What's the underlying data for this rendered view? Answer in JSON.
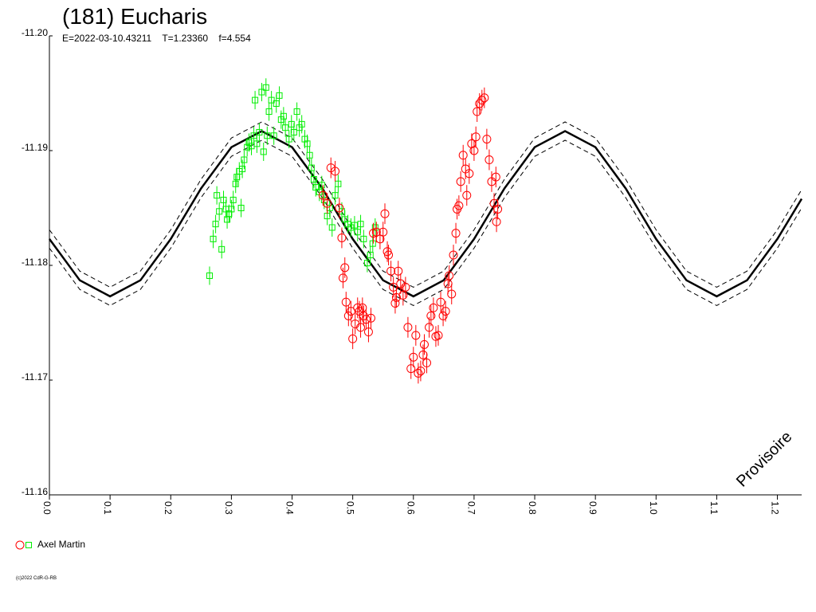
{
  "chart_data": {
    "type": "scatter",
    "title": "(181) Eucharis",
    "subtitle": "E=2022-03-10.43211    T=1.23360    f=4.554",
    "annotation": "Provisoire",
    "copyright": "(c)2022 CdR-G-RB",
    "xlim": [
      0,
      1.24
    ],
    "xticks": [
      {
        "value": 0,
        "label": "0.0"
      },
      0.1,
      0.2,
      0.3,
      0.4,
      0.5,
      0.6,
      0.7,
      0.8,
      0.9,
      {
        "value": 1,
        "label": "1.0"
      },
      1.1,
      1.2
    ],
    "ylim": [
      -11.2,
      -11.16
    ],
    "yticks": [
      {
        "value": -11.2,
        "label": "-11.20"
      },
      -11.19,
      -11.18,
      -11.17,
      -11.16
    ],
    "y_inverted": true,
    "curve_x": [
      0,
      0.05,
      0.1,
      0.15,
      0.2,
      0.25,
      0.3,
      0.35,
      0.4,
      0.45,
      0.5,
      0.55,
      0.6,
      0.65,
      0.7,
      0.75,
      0.8,
      0.85,
      0.9,
      0.95,
      1.0,
      1.05,
      1.1,
      1.15,
      1.2,
      1.24
    ],
    "curves": [
      {
        "style": "solid",
        "color": "#000000",
        "values": [
          -11.1823,
          -11.1787,
          -11.1773,
          -11.1787,
          -11.1823,
          -11.1867,
          -11.1903,
          -11.1917,
          -11.1903,
          -11.1867,
          -11.1823,
          -11.1787,
          -11.1773,
          -11.1787,
          -11.1823,
          -11.1867,
          -11.1903,
          -11.1917,
          -11.1903,
          -11.1867,
          -11.1823,
          -11.1787,
          -11.1773,
          -11.1787,
          -11.1823,
          -11.1858
        ]
      },
      {
        "style": "dashed",
        "color": "#000000",
        "values": [
          -11.1831,
          -11.1795,
          -11.1781,
          -11.1795,
          -11.1831,
          -11.1875,
          -11.1911,
          -11.1925,
          -11.1911,
          -11.1875,
          -11.1831,
          -11.1795,
          -11.1781,
          -11.1795,
          -11.1831,
          -11.1875,
          -11.1911,
          -11.1925,
          -11.1911,
          -11.1875,
          -11.1831,
          -11.1795,
          -11.1781,
          -11.1795,
          -11.1831,
          -11.1866
        ]
      },
      {
        "style": "dashed",
        "color": "#000000",
        "values": [
          -11.1815,
          -11.1779,
          -11.1765,
          -11.1779,
          -11.1815,
          -11.1859,
          -11.1895,
          -11.1909,
          -11.1895,
          -11.1859,
          -11.1815,
          -11.1779,
          -11.1765,
          -11.1779,
          -11.1815,
          -11.1859,
          -11.1895,
          -11.1909,
          -11.1895,
          -11.1859,
          -11.1815,
          -11.1779,
          -11.1765,
          -11.1779,
          -11.1815,
          -11.185
        ]
      }
    ],
    "series": [
      {
        "name": "Axel Martin",
        "marker": "circle",
        "color": "#ff0000",
        "error": 0.0009,
        "x": [
          0.451,
          0.458,
          0.464,
          0.471,
          0.478,
          0.482,
          0.484,
          0.487,
          0.489,
          0.493,
          0.497,
          0.5,
          0.504,
          0.508,
          0.511,
          0.513,
          0.516,
          0.518,
          0.522,
          0.526,
          0.53,
          0.534,
          0.539,
          0.545,
          0.55,
          0.553,
          0.557,
          0.559,
          0.563,
          0.567,
          0.57,
          0.572,
          0.575,
          0.579,
          0.583,
          0.587,
          0.591,
          0.596,
          0.6,
          0.604,
          0.608,
          0.612,
          0.616,
          0.618,
          0.622,
          0.626,
          0.629,
          0.633,
          0.637,
          0.641,
          0.645,
          0.649,
          0.653,
          0.657,
          0.659,
          0.663,
          0.666,
          0.67,
          0.672,
          0.675,
          0.678,
          0.682,
          0.686,
          0.688,
          0.692,
          0.696,
          0.7,
          0.703,
          0.705,
          0.709,
          0.713,
          0.717,
          0.721,
          0.725,
          0.729,
          0.733,
          0.737,
          0.739,
          0.736
        ],
        "values": [
          -11.1861,
          -11.1854,
          -11.1885,
          -11.1882,
          -11.185,
          -11.1824,
          -11.1789,
          -11.1798,
          -11.1768,
          -11.1756,
          -11.176,
          -11.1736,
          -11.1749,
          -11.1763,
          -11.176,
          -11.1746,
          -11.1763,
          -11.1756,
          -11.1753,
          -11.1742,
          -11.1754,
          -11.1828,
          -11.1829,
          -11.1823,
          -11.1829,
          -11.1845,
          -11.1812,
          -11.1809,
          -11.1795,
          -11.1781,
          -11.1767,
          -11.1772,
          -11.1795,
          -11.1784,
          -11.1774,
          -11.1781,
          -11.1746,
          -11.171,
          -11.172,
          -11.1739,
          -11.1706,
          -11.1708,
          -11.1722,
          -11.1731,
          -11.1715,
          -11.1746,
          -11.1756,
          -11.1763,
          -11.1738,
          -11.1739,
          -11.1768,
          -11.1756,
          -11.176,
          -11.1784,
          -11.1791,
          -11.1775,
          -11.1809,
          -11.1828,
          -11.1849,
          -11.1852,
          -11.1873,
          -11.1896,
          -11.1884,
          -11.1861,
          -11.188,
          -11.1906,
          -11.19,
          -11.1912,
          -11.1934,
          -11.1941,
          -11.1944,
          -11.1946,
          -11.191,
          -11.1892,
          -11.1873,
          -11.1854,
          -11.1838,
          -11.1849,
          -11.1877
        ]
      },
      {
        "name": "Axel Martin",
        "marker": "square",
        "color": "#00ee00",
        "error": 0.0008,
        "x": [
          0.264,
          0.27,
          0.274,
          0.276,
          0.28,
          0.284,
          0.287,
          0.291,
          0.293,
          0.296,
          0.3,
          0.303,
          0.307,
          0.309,
          0.313,
          0.316,
          0.318,
          0.321,
          0.326,
          0.329,
          0.333,
          0.337,
          0.339,
          0.342,
          0.346,
          0.35,
          0.353,
          0.357,
          0.359,
          0.362,
          0.366,
          0.37,
          0.374,
          0.379,
          0.382,
          0.386,
          0.389,
          0.395,
          0.399,
          0.403,
          0.408,
          0.412,
          0.416,
          0.421,
          0.425,
          0.429,
          0.432,
          0.436,
          0.439,
          0.445,
          0.449,
          0.453,
          0.458,
          0.462,
          0.466,
          0.471,
          0.476,
          0.482,
          0.487,
          0.492,
          0.497,
          0.503,
          0.508,
          0.513,
          0.518,
          0.524,
          0.529,
          0.533,
          0.537
        ],
        "values": [
          -11.1791,
          -11.1823,
          -11.1836,
          -11.1861,
          -11.1847,
          -11.1814,
          -11.1857,
          -11.1849,
          -11.184,
          -11.1845,
          -11.1849,
          -11.1857,
          -11.1871,
          -11.1877,
          -11.1882,
          -11.185,
          -11.1884,
          -11.1892,
          -11.1903,
          -11.1907,
          -11.1904,
          -11.1913,
          -11.1944,
          -11.1906,
          -11.1916,
          -11.1951,
          -11.1899,
          -11.1955,
          -11.1913,
          -11.1934,
          -11.1944,
          -11.1913,
          -11.1941,
          -11.1948,
          -11.1927,
          -11.193,
          -11.192,
          -11.191,
          -11.1923,
          -11.1916,
          -11.1934,
          -11.192,
          -11.1923,
          -11.191,
          -11.1906,
          -11.1896,
          -11.1885,
          -11.1875,
          -11.1868,
          -11.1864,
          -11.187,
          -11.1857,
          -11.1843,
          -11.185,
          -11.1833,
          -11.1861,
          -11.1871,
          -11.1847,
          -11.184,
          -11.1836,
          -11.1833,
          -11.1835,
          -11.1829,
          -11.1836,
          -11.1823,
          -11.1802,
          -11.1809,
          -11.1819,
          -11.1833
        ]
      }
    ]
  }
}
